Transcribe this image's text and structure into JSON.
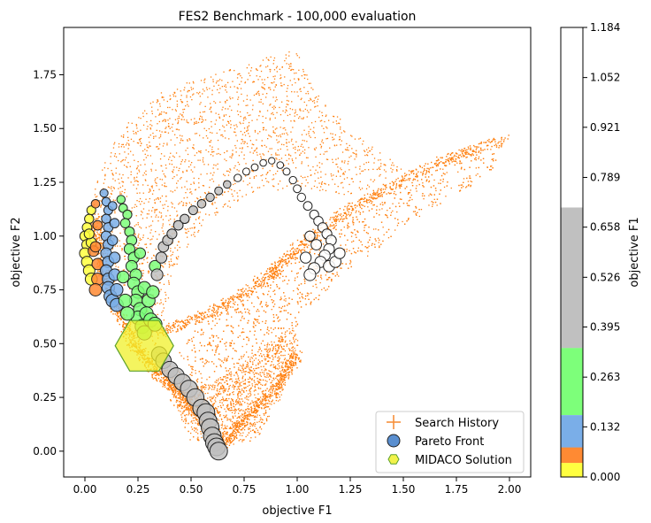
{
  "chart_data": {
    "type": "scatter",
    "title": "FES2 Benchmark - 100,000 evaluation",
    "xlabel": "objective F1",
    "ylabel": "objective F2",
    "xlim": [
      -0.1,
      2.1
    ],
    "ylim": [
      -0.12,
      1.97
    ],
    "xticks": [
      "0.00",
      "0.25",
      "0.50",
      "0.75",
      "1.00",
      "1.25",
      "1.50",
      "1.75",
      "2.00"
    ],
    "yticks": [
      "0.00",
      "0.25",
      "0.50",
      "0.75",
      "1.00",
      "1.25",
      "1.50",
      "1.75"
    ],
    "grid": false,
    "legend_position": "lower-right",
    "legend": [
      {
        "label": "Search History",
        "marker": "plus",
        "color": "#f7903a"
      },
      {
        "label": "Pareto Front",
        "marker": "circle",
        "color": "#5a8fd0"
      },
      {
        "label": "MIDACO Solution",
        "marker": "hexagon",
        "color": "#f0f02a"
      }
    ],
    "search_history_color": "#ff7f0e",
    "search_history_point_count_approx": 9000,
    "pareto_front_outline_color": "#222222",
    "colorbar": {
      "label": "objective F1",
      "range": [
        0.0,
        1.184
      ],
      "ticks": [
        "0.000",
        "0.132",
        "0.263",
        "0.395",
        "0.526",
        "0.658",
        "0.789",
        "0.921",
        "1.052",
        "1.184"
      ],
      "bands": [
        {
          "from": 0.0,
          "to": 0.037,
          "color": "#ffff40"
        },
        {
          "from": 0.037,
          "to": 0.078,
          "color": "#ff8a33"
        },
        {
          "from": 0.078,
          "to": 0.163,
          "color": "#7aaee8"
        },
        {
          "from": 0.163,
          "to": 0.34,
          "color": "#7dff7a"
        },
        {
          "from": 0.34,
          "to": 0.71,
          "color": "#c0c0c0"
        },
        {
          "from": 0.71,
          "to": 1.184,
          "color": "#ffffff"
        }
      ]
    },
    "series": [
      {
        "name": "Search History",
        "kind": "scatter-region",
        "regions": [
          {
            "outline": [
              [
                0.0,
                1.05
              ],
              [
                0.07,
                1.32
              ],
              [
                0.18,
                1.52
              ],
              [
                0.37,
                1.68
              ],
              [
                0.62,
                1.76
              ],
              [
                0.9,
                1.85
              ],
              [
                1.0,
                1.87
              ],
              [
                1.03,
                1.78
              ],
              [
                1.12,
                1.62
              ],
              [
                1.28,
                1.48
              ],
              [
                1.45,
                1.35
              ],
              [
                1.5,
                1.32
              ],
              [
                1.25,
                1.18
              ],
              [
                1.03,
                1.23
              ],
              [
                0.78,
                1.2
              ],
              [
                0.55,
                1.05
              ],
              [
                0.42,
                0.85
              ],
              [
                0.36,
                0.55
              ],
              [
                0.3,
                0.52
              ],
              [
                0.15,
                0.82
              ],
              [
                0.06,
                0.95
              ]
            ]
          },
          {
            "outline": [
              [
                0.35,
                0.35
              ],
              [
                0.5,
                0.55
              ],
              [
                0.8,
                0.82
              ],
              [
                1.0,
                0.95
              ],
              [
                1.15,
                1.05
              ],
              [
                1.3,
                1.18
              ],
              [
                1.55,
                1.3
              ],
              [
                1.8,
                1.4
              ],
              [
                1.98,
                1.45
              ],
              [
                1.9,
                1.28
              ],
              [
                1.7,
                1.17
              ],
              [
                1.5,
                1.05
              ],
              [
                1.35,
                0.92
              ],
              [
                1.2,
                0.82
              ],
              [
                1.0,
                0.6
              ],
              [
                0.9,
                0.4
              ],
              [
                0.75,
                0.22
              ],
              [
                0.6,
                0.1
              ],
              [
                0.5,
                0.02
              ]
            ]
          },
          {
            "outline": [
              [
                0.3,
                0.55
              ],
              [
                0.45,
                0.15
              ],
              [
                0.6,
                0.02
              ],
              [
                0.8,
                0.05
              ],
              [
                0.9,
                0.2
              ],
              [
                1.0,
                0.45
              ],
              [
                1.0,
                0.6
              ],
              [
                0.85,
                0.5
              ],
              [
                0.7,
                0.38
              ],
              [
                0.55,
                0.3
              ],
              [
                0.4,
                0.4
              ]
            ]
          }
        ],
        "curves": [
          [
            [
              0.05,
              1.08
            ],
            [
              0.08,
              0.86
            ],
            [
              0.14,
              0.68
            ],
            [
              0.23,
              0.5
            ],
            [
              0.33,
              0.37
            ],
            [
              0.45,
              0.27
            ],
            [
              0.57,
              0.12
            ],
            [
              0.62,
              0.02
            ]
          ],
          [
            [
              0.35,
              0.55
            ],
            [
              0.6,
              0.65
            ],
            [
              0.85,
              0.8
            ],
            [
              1.0,
              0.95
            ],
            [
              1.25,
              1.13
            ],
            [
              1.6,
              1.32
            ],
            [
              1.97,
              1.45
            ]
          ],
          [
            [
              0.62,
              0.02
            ],
            [
              0.75,
              0.15
            ],
            [
              0.9,
              0.3
            ],
            [
              1.0,
              0.45
            ]
          ]
        ]
      },
      {
        "name": "Pareto Front",
        "kind": "colored-by-f1",
        "points": [
          [
            0.03,
            1.12
          ],
          [
            0.02,
            1.08
          ],
          [
            0.01,
            1.04
          ],
          [
            0.0,
            1.0
          ],
          [
            0.01,
            0.96
          ],
          [
            0.0,
            0.92
          ],
          [
            0.01,
            0.88
          ],
          [
            0.02,
            0.84
          ],
          [
            0.03,
            0.8
          ],
          [
            0.03,
            0.97
          ],
          [
            0.02,
            1.01
          ],
          [
            0.04,
            0.93
          ],
          [
            0.05,
            1.15
          ],
          [
            0.06,
            1.05
          ],
          [
            0.05,
            0.95
          ],
          [
            0.06,
            0.87
          ],
          [
            0.06,
            0.8
          ],
          [
            0.05,
            0.75
          ],
          [
            0.09,
            1.2
          ],
          [
            0.1,
            1.16
          ],
          [
            0.11,
            1.12
          ],
          [
            0.1,
            1.08
          ],
          [
            0.11,
            1.04
          ],
          [
            0.1,
            1.0
          ],
          [
            0.11,
            0.96
          ],
          [
            0.1,
            0.92
          ],
          [
            0.11,
            0.88
          ],
          [
            0.1,
            0.84
          ],
          [
            0.11,
            0.8
          ],
          [
            0.11,
            0.76
          ],
          [
            0.12,
            0.72
          ],
          [
            0.13,
            0.7
          ],
          [
            0.13,
            1.14
          ],
          [
            0.14,
            1.06
          ],
          [
            0.13,
            0.98
          ],
          [
            0.14,
            0.9
          ],
          [
            0.14,
            0.82
          ],
          [
            0.15,
            0.75
          ],
          [
            0.15,
            0.68
          ],
          [
            0.17,
            1.17
          ],
          [
            0.18,
            1.13
          ],
          [
            0.2,
            1.1
          ],
          [
            0.19,
            1.06
          ],
          [
            0.21,
            1.02
          ],
          [
            0.22,
            0.98
          ],
          [
            0.21,
            0.94
          ],
          [
            0.23,
            0.9
          ],
          [
            0.22,
            0.86
          ],
          [
            0.24,
            0.82
          ],
          [
            0.23,
            0.78
          ],
          [
            0.25,
            0.74
          ],
          [
            0.24,
            0.7
          ],
          [
            0.26,
            0.66
          ],
          [
            0.25,
            0.62
          ],
          [
            0.27,
            0.58
          ],
          [
            0.28,
            0.55
          ],
          [
            0.19,
            0.7
          ],
          [
            0.2,
            0.64
          ],
          [
            0.18,
            0.81
          ],
          [
            0.26,
            0.92
          ],
          [
            0.28,
            0.76
          ],
          [
            0.3,
            0.7
          ],
          [
            0.29,
            0.64
          ],
          [
            0.31,
            0.61
          ],
          [
            0.32,
            0.74
          ],
          [
            0.33,
            0.86
          ],
          [
            0.33,
            0.59
          ],
          [
            0.35,
            0.45
          ],
          [
            0.37,
            0.42
          ],
          [
            0.4,
            0.38
          ],
          [
            0.43,
            0.35
          ],
          [
            0.46,
            0.32
          ],
          [
            0.49,
            0.29
          ],
          [
            0.52,
            0.25
          ],
          [
            0.55,
            0.2
          ],
          [
            0.57,
            0.18
          ],
          [
            0.58,
            0.14
          ],
          [
            0.59,
            0.11
          ],
          [
            0.6,
            0.07
          ],
          [
            0.61,
            0.04
          ],
          [
            0.62,
            0.02
          ],
          [
            0.63,
            0.0
          ],
          [
            0.34,
            0.82
          ],
          [
            0.36,
            0.9
          ],
          [
            0.37,
            0.95
          ],
          [
            0.39,
            0.98
          ],
          [
            0.41,
            1.01
          ],
          [
            0.44,
            1.05
          ],
          [
            0.47,
            1.08
          ],
          [
            0.51,
            1.12
          ],
          [
            0.55,
            1.15
          ],
          [
            0.59,
            1.18
          ],
          [
            0.63,
            1.21
          ],
          [
            0.67,
            1.24
          ],
          [
            0.72,
            1.27
          ],
          [
            0.76,
            1.3
          ],
          [
            0.8,
            1.32
          ],
          [
            0.84,
            1.34
          ],
          [
            0.88,
            1.35
          ],
          [
            0.92,
            1.33
          ],
          [
            0.95,
            1.3
          ],
          [
            0.98,
            1.26
          ],
          [
            1.0,
            1.22
          ],
          [
            1.02,
            1.18
          ],
          [
            1.05,
            1.14
          ],
          [
            1.08,
            1.1
          ],
          [
            1.1,
            1.07
          ],
          [
            1.12,
            1.04
          ],
          [
            1.14,
            1.01
          ],
          [
            1.16,
            0.98
          ],
          [
            1.15,
            0.94
          ],
          [
            1.13,
            0.91
          ],
          [
            1.11,
            0.88
          ],
          [
            1.15,
            0.86
          ],
          [
            1.18,
            0.88
          ],
          [
            1.2,
            0.92
          ],
          [
            1.09,
            0.96
          ],
          [
            1.06,
            1.0
          ],
          [
            1.04,
            0.9
          ],
          [
            1.08,
            0.85
          ],
          [
            1.06,
            0.82
          ]
        ]
      },
      {
        "name": "MIDACO Solution",
        "kind": "single",
        "points": [
          [
            0.28,
            0.49
          ]
        ]
      }
    ]
  }
}
